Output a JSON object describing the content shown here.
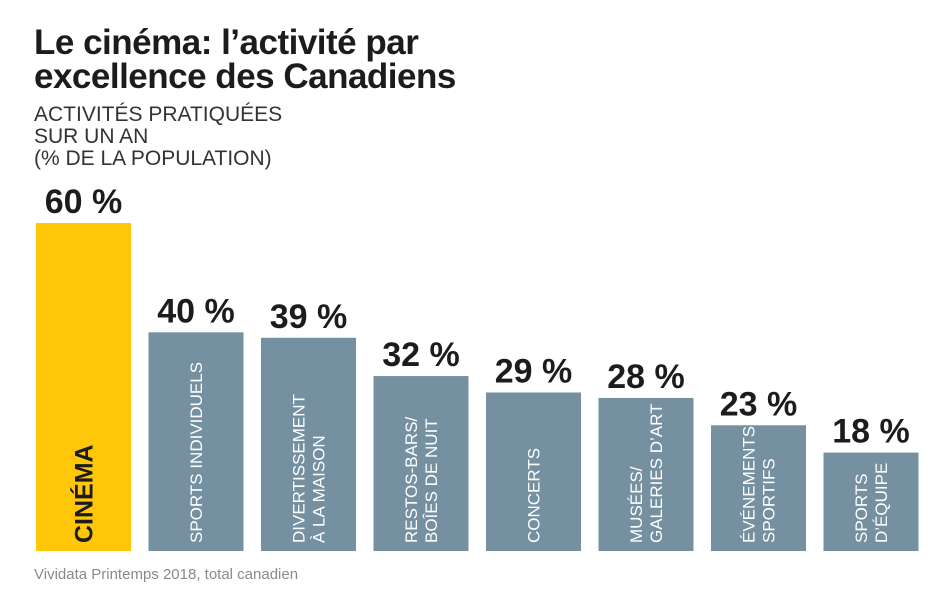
{
  "title_lines": [
    "Le cinéma: l’activité par",
    "excellence des Canadiens"
  ],
  "subtitle_lines": [
    "ACTIVITÉS PRATIQUÉES",
    "SUR UN AN",
    "(% DE LA POPULATION)"
  ],
  "source": "Vividata Printemps 2018, total canadien",
  "colors": {
    "highlight": "#ffc708",
    "bar": "#7590a0",
    "text": "#1c1c1c"
  },
  "chart_data": {
    "type": "bar",
    "title": "Le cinéma: l’activité par excellence des Canadiens",
    "subtitle": "ACTIVITÉS PRATIQUÉES SUR UN AN (% DE LA POPULATION)",
    "unit": "%",
    "ylim": [
      0,
      60
    ],
    "grid": false,
    "categories": [
      [
        "CINÉMA"
      ],
      [
        "SPORTS INDIVIDUELS"
      ],
      [
        "DIVERTISSEMENT",
        "À LA MAISON"
      ],
      [
        "RESTOS-BARS/",
        "BOÎES DE NUIT"
      ],
      [
        "CONCERTS"
      ],
      [
        "MUSÉES/",
        "GALERIES D’ART"
      ],
      [
        "ÉVÉNEMENTS",
        "SPORTIFS"
      ],
      [
        "SPORTS",
        "D’ÉQUIPE"
      ]
    ],
    "values": [
      60,
      40,
      39,
      32,
      29,
      28,
      23,
      18
    ],
    "value_labels": [
      "60 %",
      "40 %",
      "39 %",
      "32 %",
      "29 %",
      "28 %",
      "23 %",
      "18 %"
    ],
    "highlighted_index": 0
  }
}
